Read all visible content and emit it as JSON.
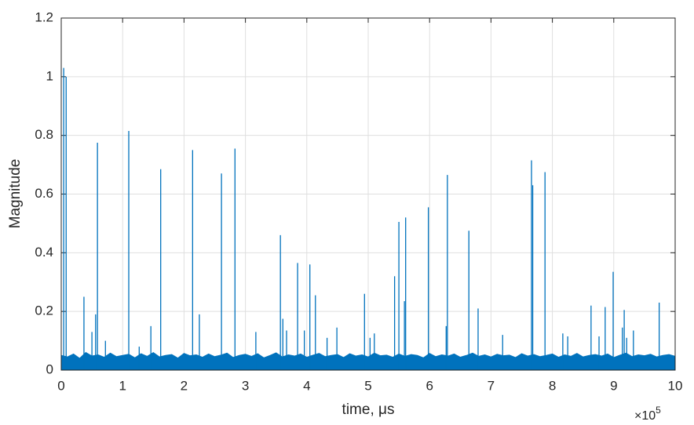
{
  "chart_data": {
    "type": "line",
    "x_label": "time, μs",
    "y_label": "Magnitude",
    "x_multiplier": "×10",
    "x_multiplier_exponent": "5",
    "xlim": [
      0,
      10
    ],
    "ylim": [
      0,
      1.2
    ],
    "xticks": [
      0,
      1,
      2,
      3,
      4,
      5,
      6,
      7,
      8,
      9,
      10
    ],
    "yticks": [
      0,
      0.2,
      0.4,
      0.6,
      0.8,
      1,
      1.2
    ],
    "grid": true,
    "series": [
      {
        "color": "#0072bd",
        "style": "band",
        "x": [
          0,
          0.1,
          0.2,
          0.3,
          0.4,
          0.5,
          0.6,
          0.7,
          0.8,
          0.9,
          1,
          1.1,
          1.2,
          1.3,
          1.4,
          1.5,
          1.6,
          1.7,
          1.8,
          1.9,
          2,
          2.1,
          2.2,
          2.3,
          2.4,
          2.5,
          2.6,
          2.7,
          2.8,
          2.9,
          3,
          3.1,
          3.2,
          3.3,
          3.4,
          3.5,
          3.6,
          3.7,
          3.8,
          3.9,
          4,
          4.1,
          4.2,
          4.3,
          4.4,
          4.5,
          4.6,
          4.7,
          4.8,
          4.9,
          5,
          5.1,
          5.2,
          5.3,
          5.4,
          5.5,
          5.6,
          5.7,
          5.8,
          5.9,
          6,
          6.1,
          6.2,
          6.3,
          6.4,
          6.5,
          6.6,
          6.7,
          6.8,
          6.9,
          7,
          7.1,
          7.2,
          7.3,
          7.4,
          7.5,
          7.6,
          7.7,
          7.8,
          7.9,
          8,
          8.1,
          8.2,
          8.3,
          8.4,
          8.5,
          8.6,
          8.7,
          8.8,
          8.9,
          9,
          9.1,
          9.2,
          9.3,
          9.4,
          9.5,
          9.6,
          9.7,
          9.8,
          9.9,
          10
        ],
        "values": [
          0.05,
          0.045,
          0.055,
          0.04,
          0.06,
          0.048,
          0.052,
          0.044,
          0.058,
          0.046,
          0.05,
          0.054,
          0.042,
          0.056,
          0.047,
          0.06,
          0.045,
          0.05,
          0.053,
          0.041,
          0.057,
          0.049,
          0.052,
          0.044,
          0.055,
          0.046,
          0.051,
          0.058,
          0.043,
          0.05,
          0.054,
          0.047,
          0.056,
          0.042,
          0.05,
          0.059,
          0.045,
          0.052,
          0.048,
          0.055,
          0.044,
          0.051,
          0.057,
          0.046,
          0.05,
          0.053,
          0.043,
          0.056,
          0.048,
          0.052,
          0.045,
          0.058,
          0.049,
          0.051,
          0.044,
          0.055,
          0.047,
          0.053,
          0.05,
          0.042,
          0.057,
          0.046,
          0.052,
          0.048,
          0.055,
          0.044,
          0.05,
          0.058,
          0.047,
          0.052,
          0.045,
          0.054,
          0.049,
          0.051,
          0.043,
          0.056,
          0.048,
          0.053,
          0.046,
          0.05,
          0.055,
          0.044,
          0.052,
          0.047,
          0.057,
          0.045,
          0.05,
          0.053,
          0.048,
          0.055,
          0.043,
          0.051,
          0.058,
          0.046,
          0.052,
          0.049,
          0.054,
          0.045,
          0.05,
          0.053,
          0.047
        ]
      },
      {
        "color": "#0072bd",
        "style": "spikes",
        "x": [
          0.04,
          0.08,
          0.37,
          0.5,
          0.56,
          0.59,
          0.72,
          1.1,
          1.27,
          1.46,
          1.62,
          2.14,
          2.25,
          2.61,
          2.83,
          3.17,
          3.57,
          3.61,
          3.67,
          3.85,
          3.96,
          4.05,
          4.14,
          4.33,
          4.49,
          4.94,
          5.03,
          5.1,
          5.43,
          5.5,
          5.59,
          5.61,
          5.98,
          6.27,
          6.29,
          6.64,
          6.79,
          7.19,
          7.66,
          7.68,
          7.88,
          8.17,
          8.25,
          8.63,
          8.76,
          8.86,
          8.99,
          9.14,
          9.17,
          9.21,
          9.32,
          9.74
        ],
        "values": [
          1.03,
          1.0,
          0.25,
          0.13,
          0.19,
          0.775,
          0.1,
          0.815,
          0.08,
          0.15,
          0.685,
          0.75,
          0.19,
          0.67,
          0.755,
          0.13,
          0.46,
          0.175,
          0.135,
          0.365,
          0.135,
          0.36,
          0.255,
          0.11,
          0.145,
          0.26,
          0.11,
          0.125,
          0.32,
          0.505,
          0.235,
          0.52,
          0.555,
          0.15,
          0.665,
          0.475,
          0.21,
          0.12,
          0.715,
          0.63,
          0.675,
          0.125,
          0.115,
          0.22,
          0.115,
          0.215,
          0.335,
          0.145,
          0.205,
          0.11,
          0.135,
          0.23
        ]
      }
    ]
  }
}
